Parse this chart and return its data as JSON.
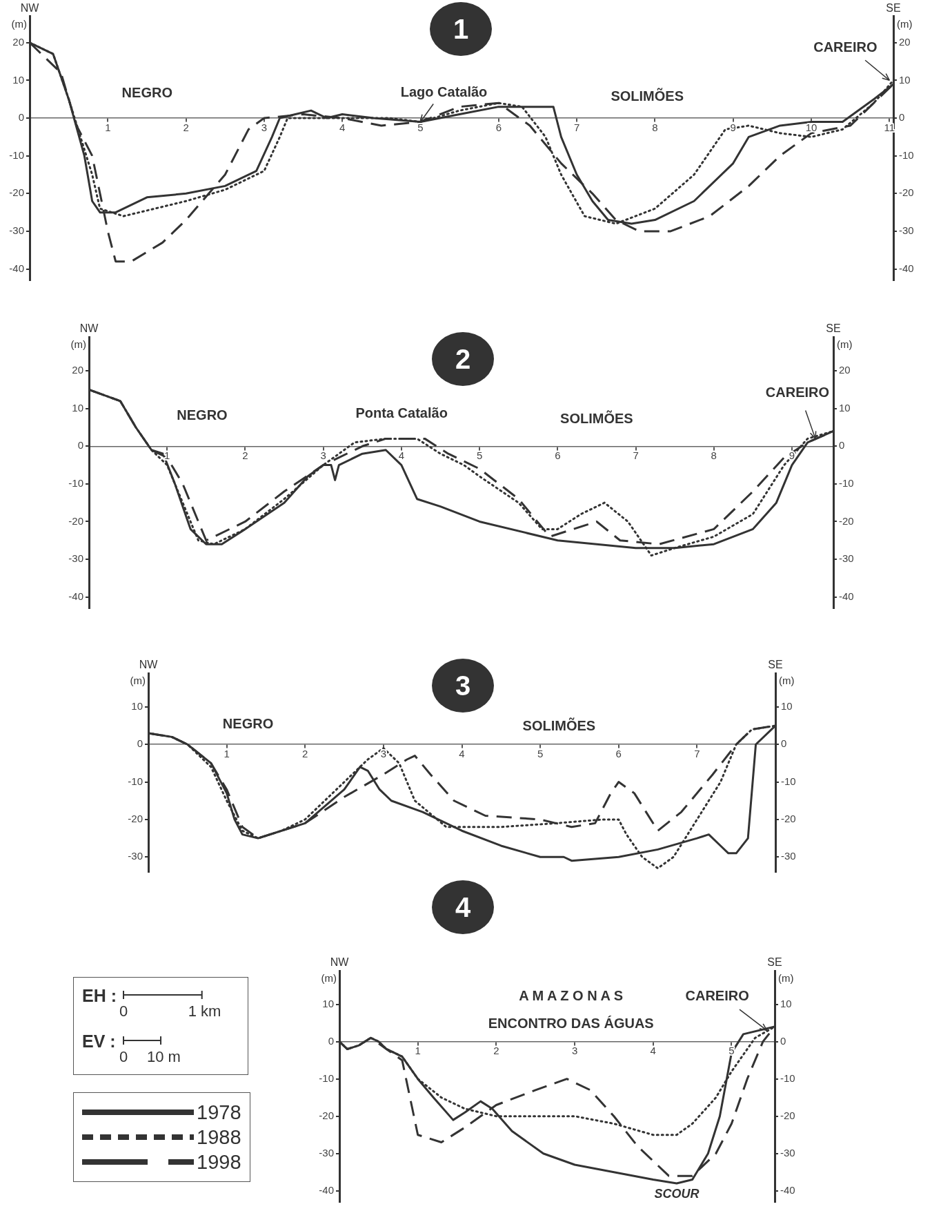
{
  "chart_data": [
    {
      "type": "line",
      "title": "1",
      "ylabel": "(m)",
      "y2label": "(m)",
      "marker": "none",
      "xlim": [
        0,
        11.05
      ],
      "xticks": [
        1,
        2,
        3,
        4,
        5,
        6,
        7,
        8,
        9,
        10,
        11
      ],
      "ylim": [
        -43,
        27
      ],
      "yticks": [
        20,
        10,
        0,
        -10,
        -20,
        -30,
        -40
      ],
      "y2lim": [
        -43,
        27
      ],
      "y2ticks": [
        20,
        10,
        0,
        -10,
        -20,
        -30,
        -40
      ],
      "series": [
        {
          "color": "#333333",
          "line_style": "solid",
          "x": [
            0,
            0.3,
            0.5,
            0.7,
            0.8,
            0.9,
            1.1,
            1.5,
            2,
            2.5,
            2.9,
            3.1,
            3.2,
            3.4,
            3.6,
            3.8,
            4,
            4.4,
            5,
            5.5,
            6,
            6.7,
            6.8,
            7,
            7.2,
            7.4,
            7.7,
            8,
            8.5,
            9,
            9.2,
            9.6,
            10,
            10.4,
            10.8,
            11.05
          ],
          "values": [
            20,
            17,
            5,
            -10,
            -22,
            -25,
            -25,
            -21,
            -20,
            -18,
            -14,
            -5,
            0,
            1,
            2,
            0,
            1,
            0,
            -1,
            1,
            3,
            3,
            -5,
            -15,
            -22,
            -27,
            -28,
            -27,
            -22,
            -12,
            -5,
            -2,
            -1,
            -1,
            5,
            9
          ]
        },
        {
          "color": "#333333",
          "line_style": "dotted",
          "x": [
            0,
            0.3,
            0.5,
            0.8,
            0.9,
            1.2,
            2,
            2.5,
            3,
            3.2,
            3.3,
            4,
            4.6,
            5,
            5.5,
            6,
            6.3,
            6.6,
            6.8,
            7.1,
            7.5,
            8,
            8.5,
            8.9,
            9.2,
            9.6,
            10,
            10.4,
            10.8,
            11.05
          ],
          "values": [
            20,
            17,
            5,
            -15,
            -24,
            -26,
            -22,
            -19,
            -14,
            -5,
            0,
            0,
            0,
            -1,
            2,
            4,
            3,
            -5,
            -15,
            -26,
            -28,
            -24,
            -15,
            -3,
            -2,
            -4,
            -5,
            -3,
            4,
            10
          ]
        },
        {
          "color": "#333333",
          "line_style": "dashed",
          "x": [
            0,
            0.4,
            0.6,
            0.8,
            0.9,
            1,
            1.1,
            1.3,
            1.7,
            2,
            2.5,
            2.8,
            3,
            3.5,
            4,
            4.5,
            5,
            5.5,
            6,
            6.4,
            6.8,
            7.2,
            7.5,
            7.8,
            8.2,
            8.7,
            9.2,
            9.6,
            10,
            10.5,
            10.8,
            11.05
          ],
          "values": [
            20,
            12,
            -2,
            -10,
            -20,
            -30,
            -38,
            -38,
            -33,
            -27,
            -15,
            -3,
            0,
            1,
            0,
            -2,
            -1,
            3,
            4,
            -2,
            -12,
            -20,
            -27,
            -30,
            -30,
            -26,
            -18,
            -10,
            -4,
            -2,
            4,
            9
          ]
        }
      ],
      "annotations": [
        "NW",
        "SE",
        "NEGRO",
        {
          "text": "Lago Catalão",
          "x": 5,
          "y": -1
        },
        "SOLIMÕES",
        {
          "text": "CAREIRO",
          "x": 11,
          "y": 10
        }
      ]
    },
    {
      "type": "line",
      "title": "2",
      "ylabel": "(m)",
      "y2label": "(m)",
      "marker": "none",
      "xlim": [
        0,
        9.53
      ],
      "xticks": [
        1,
        2,
        3,
        4,
        5,
        6,
        7,
        8,
        9
      ],
      "ylim": [
        -43,
        29
      ],
      "yticks": [
        20,
        10,
        0,
        -10,
        -20,
        -30,
        -40
      ],
      "y2lim": [
        -43,
        29
      ],
      "y2ticks": [
        20,
        10,
        0,
        -10,
        -20,
        -30,
        -40
      ],
      "series": [
        {
          "color": "#333333",
          "line_style": "solid",
          "x": [
            0,
            0.4,
            0.6,
            0.8,
            0.95,
            1.1,
            1.3,
            1.5,
            1.7,
            2,
            2.5,
            2.8,
            3,
            3.1,
            3.15,
            3.2,
            3.5,
            3.8,
            4,
            4.2,
            4.5,
            5,
            6,
            7,
            7.5,
            8,
            8.5,
            8.8,
            9,
            9.2,
            9.53
          ],
          "values": [
            15,
            12,
            5,
            -1,
            -2,
            -10,
            -22,
            -26,
            -26,
            -22,
            -15,
            -8,
            -5,
            -5,
            -9,
            -5,
            -2,
            -1,
            -5,
            -14,
            -16,
            -20,
            -25,
            -27,
            -27,
            -26,
            -22,
            -15,
            -5,
            1,
            4
          ]
        },
        {
          "color": "#333333",
          "line_style": "dotted",
          "x": [
            0,
            0.4,
            0.6,
            0.8,
            1,
            1.2,
            1.4,
            1.6,
            2,
            2.5,
            3,
            3.4,
            3.8,
            4.2,
            4.5,
            4.8,
            5,
            5.5,
            5.8,
            6,
            6.3,
            6.6,
            6.9,
            7.2,
            7.5,
            8,
            8.5,
            8.9,
            9.2,
            9.53
          ],
          "values": [
            15,
            12,
            5,
            -1,
            -5,
            -15,
            -25,
            -26,
            -22,
            -14,
            -5,
            1,
            2,
            2,
            -2,
            -5,
            -8,
            -15,
            -22,
            -22,
            -18,
            -15,
            -20,
            -29,
            -27,
            -24,
            -18,
            -5,
            2,
            4
          ]
        },
        {
          "color": "#333333",
          "line_style": "dashed",
          "x": [
            0,
            0.4,
            0.6,
            0.8,
            1,
            1.2,
            1.5,
            2,
            2.5,
            3,
            3.5,
            3.8,
            4.3,
            4.6,
            5,
            5.5,
            5.9,
            6.2,
            6.5,
            6.8,
            7.3,
            8,
            8.5,
            8.9,
            9.2,
            9.53
          ],
          "values": [
            15,
            12,
            5,
            -1,
            -3,
            -10,
            -25,
            -20,
            -12,
            -5,
            0,
            2,
            2,
            -2,
            -6,
            -14,
            -24,
            -22,
            -20,
            -25,
            -26,
            -22,
            -12,
            -3,
            1,
            4
          ]
        }
      ],
      "annotations": [
        "NW",
        "SE",
        "NEGRO",
        "Ponta Catalão",
        "SOLIMÕES",
        {
          "text": "CAREIRO",
          "x": 9.3,
          "y": 2
        }
      ]
    },
    {
      "type": "line",
      "title": "3",
      "ylabel": "(m)",
      "y2label": "(m)",
      "marker": "none",
      "xlim": [
        0,
        8
      ],
      "xticks": [
        1,
        2,
        3,
        4,
        5,
        6,
        7
      ],
      "ylim": [
        -34,
        19
      ],
      "yticks": [
        10,
        0,
        -10,
        -20,
        -30
      ],
      "y2lim": [
        -34,
        19
      ],
      "y2ticks": [
        10,
        0,
        -10,
        -20,
        -30
      ],
      "series": [
        {
          "color": "#333333",
          "line_style": "solid",
          "x": [
            0,
            0.3,
            0.5,
            0.8,
            1,
            1.1,
            1.2,
            1.4,
            1.7,
            2,
            2.5,
            2.7,
            2.8,
            2.95,
            3.1,
            3.5,
            4,
            4.5,
            5,
            5.3,
            5.4,
            6,
            6.5,
            7,
            7.15,
            7.3,
            7.4,
            7.5,
            7.65,
            7.75,
            8
          ],
          "values": [
            3,
            2,
            0,
            -5,
            -13,
            -20,
            -24,
            -25,
            -23,
            -21,
            -12,
            -6,
            -7,
            -12,
            -15,
            -18,
            -23,
            -27,
            -30,
            -30,
            -31,
            -30,
            -28,
            -25,
            -24,
            -27,
            -29,
            -29,
            -25,
            0,
            5
          ]
        },
        {
          "color": "#333333",
          "line_style": "dotted",
          "x": [
            0,
            0.3,
            0.5,
            0.8,
            1,
            1.2,
            1.4,
            1.7,
            2,
            2.5,
            2.8,
            3,
            3.2,
            3.4,
            3.8,
            4.5,
            5.2,
            5.8,
            6,
            6.1,
            6.3,
            6.5,
            6.7,
            7,
            7.3,
            7.5,
            7.7,
            8
          ],
          "values": [
            3,
            2,
            0,
            -6,
            -15,
            -23,
            -25,
            -23,
            -20,
            -10,
            -4,
            -1,
            -5,
            -15,
            -22,
            -22,
            -21,
            -20,
            -20,
            -24,
            -30,
            -33,
            -30,
            -20,
            -10,
            0,
            4,
            5
          ]
        },
        {
          "color": "#333333",
          "line_style": "dashed",
          "x": [
            0,
            0.3,
            0.5,
            0.8,
            1,
            1.2,
            1.4,
            2,
            2.5,
            3,
            3.3,
            3.4,
            3.6,
            3.9,
            4.3,
            5,
            5.2,
            5.4,
            5.7,
            5.9,
            6,
            6.2,
            6.5,
            6.8,
            7.2,
            7.5,
            7.7,
            8
          ],
          "values": [
            3,
            2,
            0,
            -5,
            -12,
            -22,
            -25,
            -21,
            -14,
            -8,
            -4,
            -3,
            -8,
            -15,
            -19,
            -20,
            -21,
            -22,
            -21,
            -13,
            -10,
            -13,
            -23,
            -18,
            -8,
            0,
            4,
            5
          ]
        }
      ],
      "annotations": [
        "NW",
        "SE",
        "NEGRO",
        "SOLIMÕES"
      ]
    },
    {
      "type": "line",
      "title": "4",
      "ylabel": "(m)",
      "y2label": "(m)",
      "marker": "none",
      "legend": "left",
      "xlim": [
        0,
        5.55
      ],
      "xticks": [
        1,
        2,
        3,
        4,
        5
      ],
      "ylim": [
        -43,
        19
      ],
      "yticks": [
        10,
        0,
        -10,
        -20,
        -30,
        -40
      ],
      "y2lim": [
        -43,
        19
      ],
      "y2ticks": [
        10,
        0,
        -10,
        -20,
        -30,
        -40
      ],
      "series": [
        {
          "name": "1978",
          "color": "#333333",
          "line_style": "solid",
          "x": [
            0,
            0.1,
            0.25,
            0.4,
            0.5,
            0.6,
            0.8,
            1,
            1.2,
            1.45,
            1.6,
            1.8,
            1.95,
            2.2,
            2.6,
            3,
            3.5,
            4,
            4.3,
            4.5,
            4.7,
            4.85,
            5,
            5.15,
            5.55
          ],
          "values": [
            0,
            -2,
            -1,
            1,
            0,
            -2,
            -4,
            -10,
            -15,
            -21,
            -19,
            -16,
            -18,
            -24,
            -30,
            -33,
            -35,
            -37,
            -38,
            -37,
            -30,
            -20,
            -3,
            2,
            4
          ]
        },
        {
          "name": "1988",
          "color": "#333333",
          "line_style": "dotted",
          "x": [
            0,
            0.1,
            0.25,
            0.4,
            0.5,
            0.6,
            0.8,
            1,
            1.3,
            1.6,
            2,
            2.5,
            3,
            3.5,
            4,
            4.3,
            4.5,
            4.8,
            5,
            5.3,
            5.55
          ],
          "values": [
            0,
            -2,
            -1,
            1,
            0,
            -2,
            -4,
            -10,
            -15,
            -18,
            -20,
            -20,
            -20,
            -22,
            -25,
            -25,
            -22,
            -15,
            -8,
            1,
            4
          ]
        },
        {
          "name": "1998",
          "color": "#333333",
          "line_style": "dashed",
          "x": [
            0,
            0.1,
            0.25,
            0.4,
            0.6,
            0.8,
            0.9,
            1,
            1.3,
            1.6,
            2,
            2.5,
            2.9,
            3.2,
            3.5,
            3.8,
            4.2,
            4.5,
            4.8,
            5,
            5.2,
            5.4,
            5.55
          ],
          "values": [
            0,
            -2,
            -1,
            1,
            -2,
            -5,
            -15,
            -25,
            -27,
            -23,
            -17,
            -13,
            -10,
            -13,
            -20,
            -28,
            -36,
            -36,
            -30,
            -22,
            -10,
            0,
            4
          ]
        }
      ],
      "annotations": [
        "NW",
        "SE",
        "A M A Z O N A S",
        "ENCONTRO DAS ÁGUAS",
        {
          "text": "CAREIRO",
          "x": 5.45,
          "y": 3
        },
        "SCOUR",
        "EH :",
        "0",
        "1 km",
        "EV :",
        "0",
        "10 m"
      ]
    }
  ]
}
